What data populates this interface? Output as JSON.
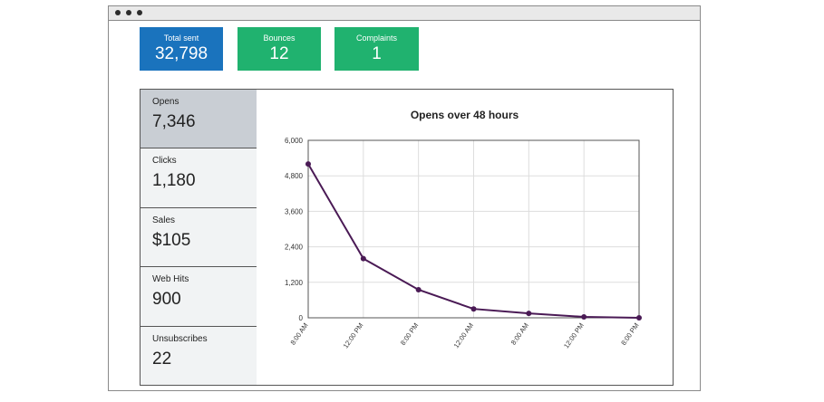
{
  "stats": [
    {
      "label": "Total sent",
      "value": "32,798",
      "color": "#1a73bd"
    },
    {
      "label": "Bounces",
      "value": "12",
      "color": "#20b26f"
    },
    {
      "label": "Complaints",
      "value": "1",
      "color": "#20b26f"
    }
  ],
  "metrics": [
    {
      "label": "Opens",
      "value": "7,346",
      "selected": true
    },
    {
      "label": "Clicks",
      "value": "1,180"
    },
    {
      "label": "Sales",
      "value": "$105"
    },
    {
      "label": "Web Hits",
      "value": "900"
    },
    {
      "label": "Unsubscribes",
      "value": "22"
    }
  ],
  "colors": {
    "selected_metric_bg": "#c9ced4",
    "metric_bg": "#f1f3f4",
    "line": "#4a1a55"
  },
  "chart_data": {
    "type": "line",
    "title": "Opens over 48 hours",
    "categories": [
      "8:00 AM",
      "12:00 PM",
      "8:00 PM",
      "12:00 AM",
      "8:00 AM",
      "12:00 PM",
      "8:00 PM"
    ],
    "values": [
      5200,
      2000,
      950,
      300,
      150,
      30,
      0
    ],
    "ylim": [
      0,
      6000
    ],
    "yticks": [
      "0",
      "1,200",
      "2,400",
      "3,600",
      "4,800",
      "6,000"
    ],
    "grid": true
  }
}
